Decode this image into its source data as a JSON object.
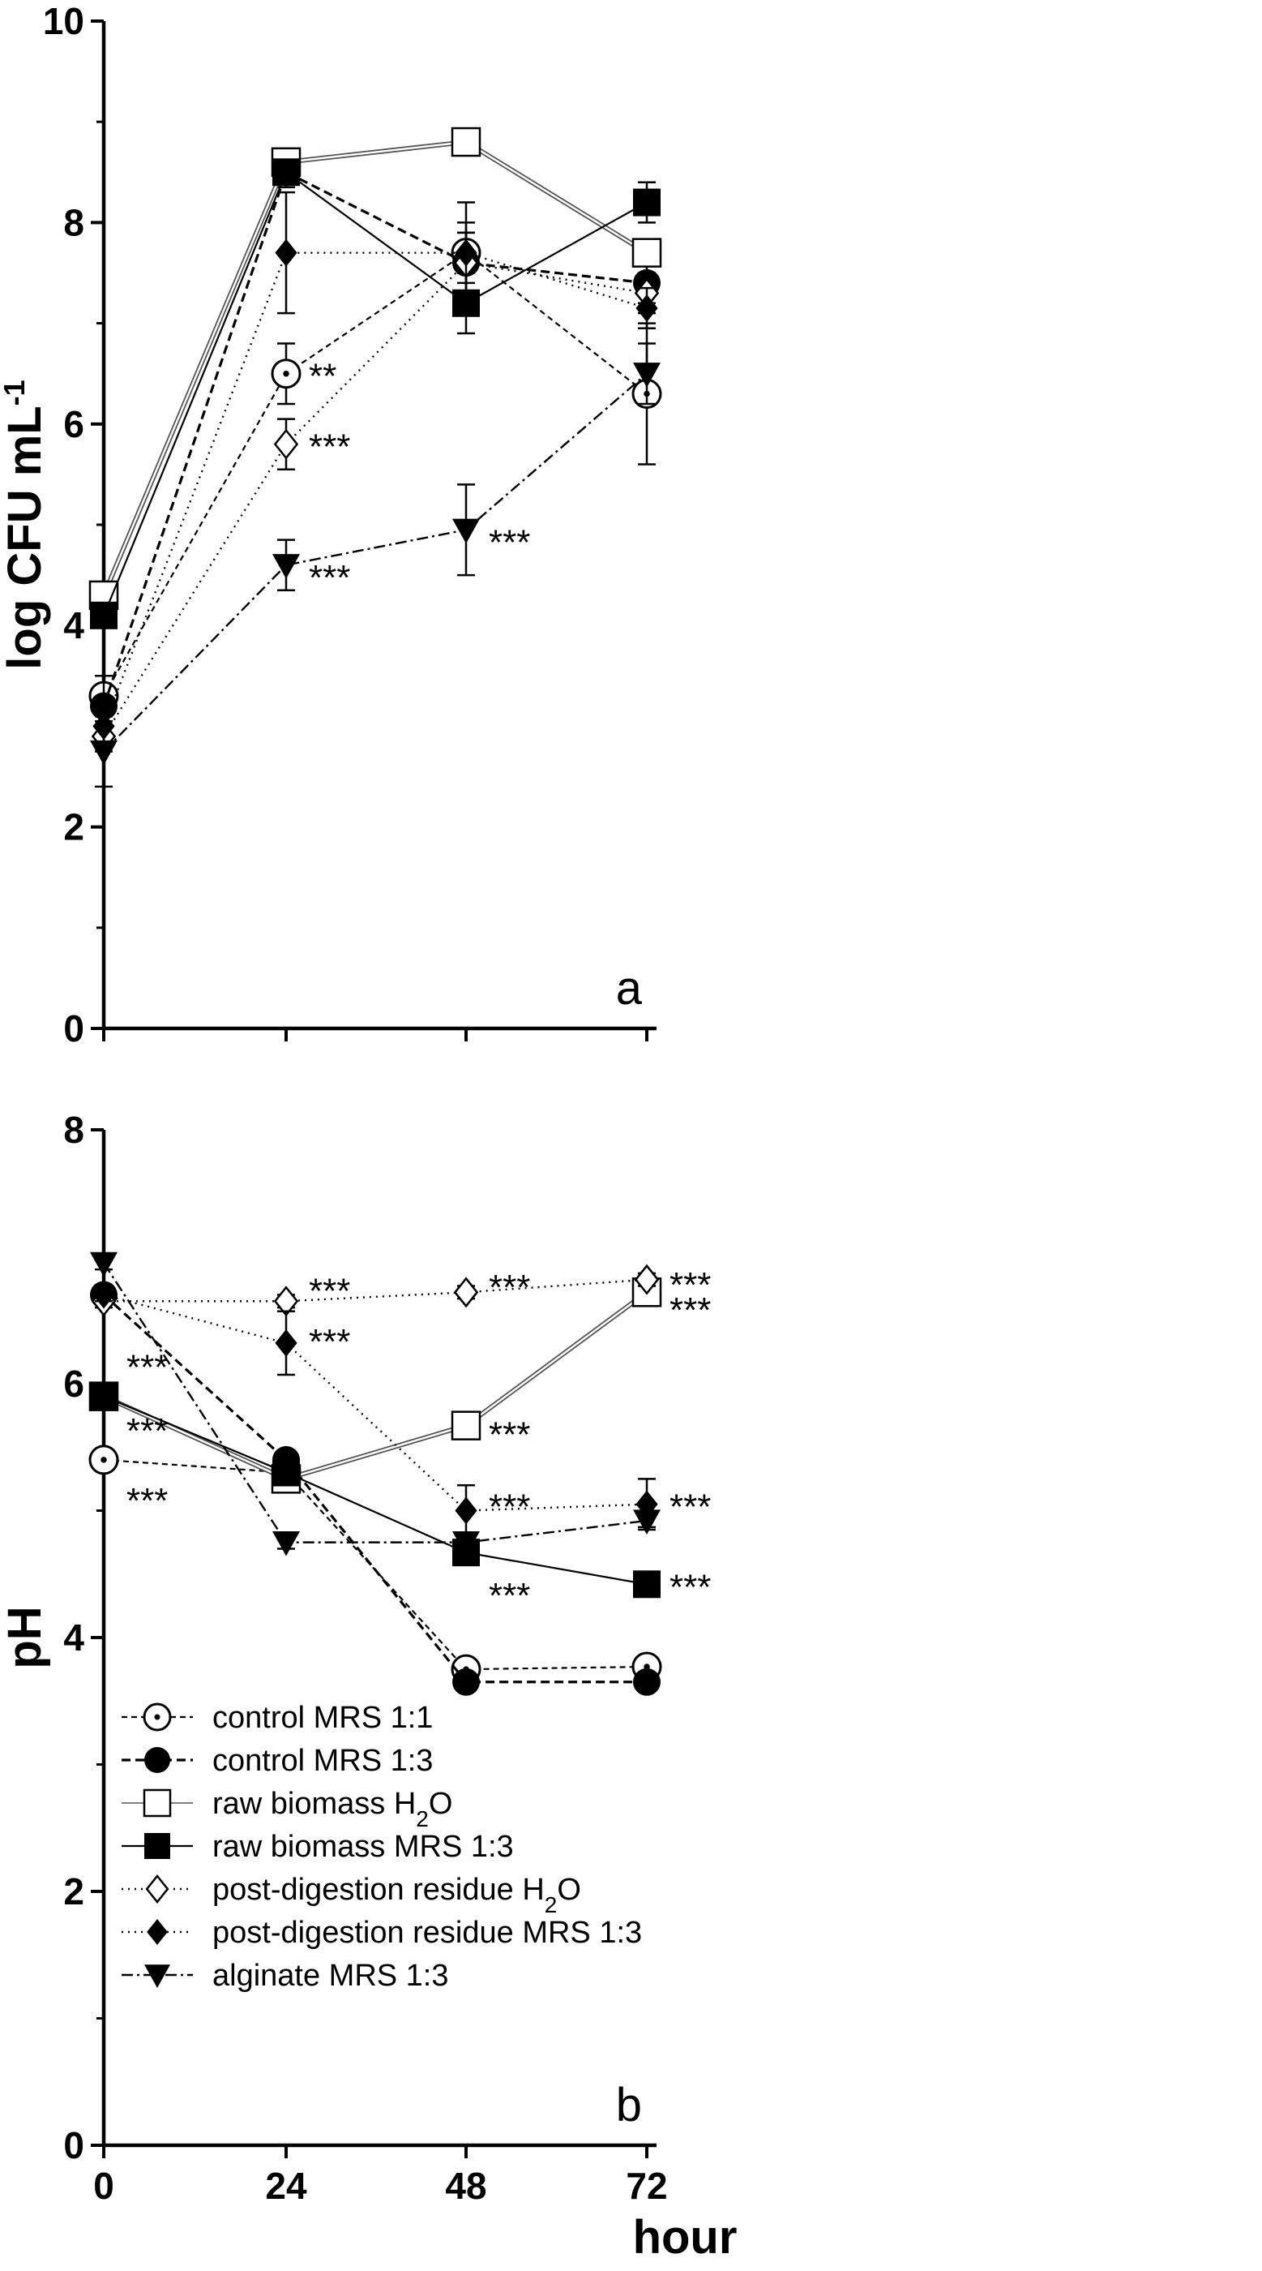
{
  "chart_data": [
    {
      "type": "line",
      "panel": "a",
      "xlabel": "hour",
      "ylabel": "log CFU mL",
      "ylabel_sup": "-1",
      "x": [
        0,
        24,
        48,
        72
      ],
      "xticks": [
        "0",
        "24",
        "48",
        "72"
      ],
      "ylim": [
        0,
        10
      ],
      "yticks": [
        "0",
        "2",
        "4",
        "6",
        "8",
        "10"
      ],
      "series": [
        {
          "name": "control MRS 1:1",
          "values": [
            3.3,
            6.5,
            7.7,
            6.3
          ],
          "errors": [
            0.2,
            0.3,
            0.5,
            0.7
          ]
        },
        {
          "name": "control MRS 1:3",
          "values": [
            3.2,
            8.5,
            7.6,
            7.4
          ],
          "errors": [
            0.3,
            0.15,
            0.3,
            0.2
          ]
        },
        {
          "name": "raw biomass H2O",
          "values": [
            4.3,
            8.6,
            8.8,
            7.7
          ],
          "errors": [
            0.1,
            0.1,
            0.1,
            0.1
          ]
        },
        {
          "name": "raw biomass MRS 1:3",
          "values": [
            4.1,
            8.5,
            7.2,
            8.2
          ],
          "errors": [
            0.1,
            0.1,
            0.3,
            0.2
          ]
        },
        {
          "name": "post-digestion residue H2O",
          "values": [
            2.9,
            5.8,
            7.6,
            7.3
          ],
          "errors": [
            0.15,
            0.25,
            0.3,
            0.2
          ]
        },
        {
          "name": "post-digestion residue MRS 1:3",
          "values": [
            3.0,
            7.7,
            7.7,
            7.15
          ],
          "errors": [
            0.2,
            0.6,
            0.3,
            0.2
          ]
        },
        {
          "name": "alginate MRS 1:3",
          "values": [
            2.75,
            4.6,
            4.95,
            6.5
          ],
          "errors": [
            0.35,
            0.25,
            0.45,
            0.3
          ]
        }
      ],
      "annotations": [
        {
          "series": "control MRS 1:1",
          "x": 24,
          "y": 6.5,
          "text": "**"
        },
        {
          "series": "post-digestion residue H2O",
          "x": 24,
          "y": 5.8,
          "text": "***"
        },
        {
          "series": "alginate MRS 1:3",
          "x": 24,
          "y": 4.5,
          "text": "***"
        },
        {
          "series": "alginate MRS 1:3",
          "x": 48,
          "y": 4.85,
          "text": "***"
        }
      ],
      "panel_label": "a"
    },
    {
      "type": "line",
      "panel": "b",
      "xlabel": "hour",
      "ylabel": "pH",
      "x": [
        0,
        24,
        48,
        72
      ],
      "xticks": [
        "0",
        "24",
        "48",
        "72"
      ],
      "ylim": [
        0,
        8
      ],
      "yticks": [
        "0",
        "2",
        "4",
        "6",
        "8"
      ],
      "series": [
        {
          "name": "control MRS 1:1",
          "values": [
            5.4,
            5.3,
            3.75,
            3.77
          ],
          "errors": [
            0.05,
            0.05,
            0.05,
            0.05
          ]
        },
        {
          "name": "control MRS 1:3",
          "values": [
            6.7,
            5.4,
            3.65,
            3.65
          ],
          "errors": [
            0.05,
            0.05,
            0.05,
            0.05
          ]
        },
        {
          "name": "raw biomass H2O",
          "values": [
            5.9,
            5.25,
            5.67,
            6.72
          ],
          "errors": [
            0.05,
            0.05,
            0.05,
            0.05
          ]
        },
        {
          "name": "raw biomass MRS 1:3",
          "values": [
            5.9,
            5.3,
            4.67,
            4.42
          ],
          "errors": [
            0.05,
            0.05,
            0.05,
            0.05
          ]
        },
        {
          "name": "post-digestion residue H2O",
          "values": [
            6.65,
            6.65,
            6.72,
            6.82
          ],
          "errors": [
            0.05,
            0.05,
            0.05,
            0.05
          ]
        },
        {
          "name": "post-digestion residue MRS 1:3",
          "values": [
            6.7,
            6.32,
            5.0,
            5.05
          ],
          "errors": [
            0.05,
            0.25,
            0.2,
            0.2
          ]
        },
        {
          "name": "alginate MRS 1:3",
          "values": [
            6.95,
            4.75,
            4.75,
            4.92
          ],
          "errors": [
            0.05,
            0.05,
            0.05,
            0.05
          ]
        }
      ],
      "annotations": [
        {
          "x": 0,
          "y": 6.15,
          "text": "***"
        },
        {
          "x": 0,
          "y": 5.65,
          "text": "***"
        },
        {
          "x": 0,
          "y": 5.1,
          "text": "***"
        },
        {
          "x": 24,
          "y": 6.75,
          "text": "***"
        },
        {
          "x": 24,
          "y": 6.35,
          "text": "***"
        },
        {
          "x": 48,
          "y": 6.78,
          "text": "***"
        },
        {
          "x": 48,
          "y": 5.62,
          "text": "***"
        },
        {
          "x": 48,
          "y": 5.05,
          "text": "***"
        },
        {
          "x": 48,
          "y": 4.35,
          "text": "***"
        },
        {
          "x": 72,
          "y": 6.8,
          "text": "***"
        },
        {
          "x": 72,
          "y": 6.6,
          "text": "***"
        },
        {
          "x": 72,
          "y": 5.05,
          "text": "***"
        },
        {
          "x": 72,
          "y": 4.42,
          "text": "***"
        }
      ],
      "panel_label": "b",
      "legend": [
        {
          "pre": "control MRS 1:1",
          "sub": "",
          "post": ""
        },
        {
          "pre": "control MRS 1:3",
          "sub": "",
          "post": ""
        },
        {
          "pre": "raw biomass H",
          "sub": "2",
          "post": "O"
        },
        {
          "pre": "raw biomass MRS 1:3",
          "sub": "",
          "post": ""
        },
        {
          "pre": "post-digestion residue H",
          "sub": "2",
          "post": "O"
        },
        {
          "pre": "post-digestion residue MRS 1:3",
          "sub": "",
          "post": ""
        },
        {
          "pre": "alginate MRS 1:3",
          "sub": "",
          "post": ""
        }
      ],
      "legend_position": "bottom-left"
    }
  ],
  "colors": {
    "ink": "#000000",
    "background": "#ffffff",
    "raw_h2o_line": "#555555"
  }
}
